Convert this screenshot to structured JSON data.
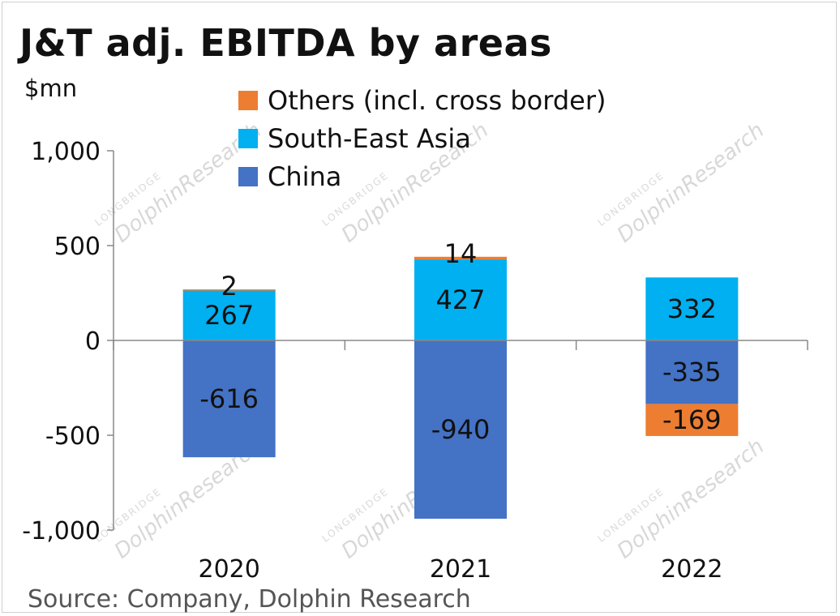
{
  "chart_data": {
    "type": "bar",
    "stacked": true,
    "title": "J&T adj. EBITDA by areas",
    "ylabel": "$mn",
    "xlabel": "",
    "categories": [
      "2020",
      "2021",
      "2022"
    ],
    "ylim": [
      -1000,
      1000
    ],
    "yticks": [
      1000,
      500,
      0,
      -500,
      -1000
    ],
    "ytick_labels": [
      "1,000",
      "500",
      "0",
      "-500",
      "-1,000"
    ],
    "legend_position": "top-center",
    "series": [
      {
        "name": "China",
        "color": "#4472C4",
        "values": [
          -616,
          -940,
          -335
        ],
        "labels": [
          "-616",
          "-940",
          "-335"
        ]
      },
      {
        "name": "South-East Asia",
        "color": "#00B0F0",
        "values": [
          267,
          427,
          332
        ],
        "labels": [
          "267",
          "427",
          "332"
        ]
      },
      {
        "name": "Others (incl. cross border)",
        "color": "#ED7D31",
        "values": [
          2,
          14,
          -169
        ],
        "labels": [
          "2",
          "14",
          "-169"
        ]
      }
    ],
    "legend_order": [
      "Others (incl. cross border)",
      "South-East Asia",
      "China"
    ]
  },
  "source": "Source: Company, Dolphin Research",
  "watermark": {
    "text": "DolphinResearch",
    "small": "LONGBRIDGE"
  }
}
